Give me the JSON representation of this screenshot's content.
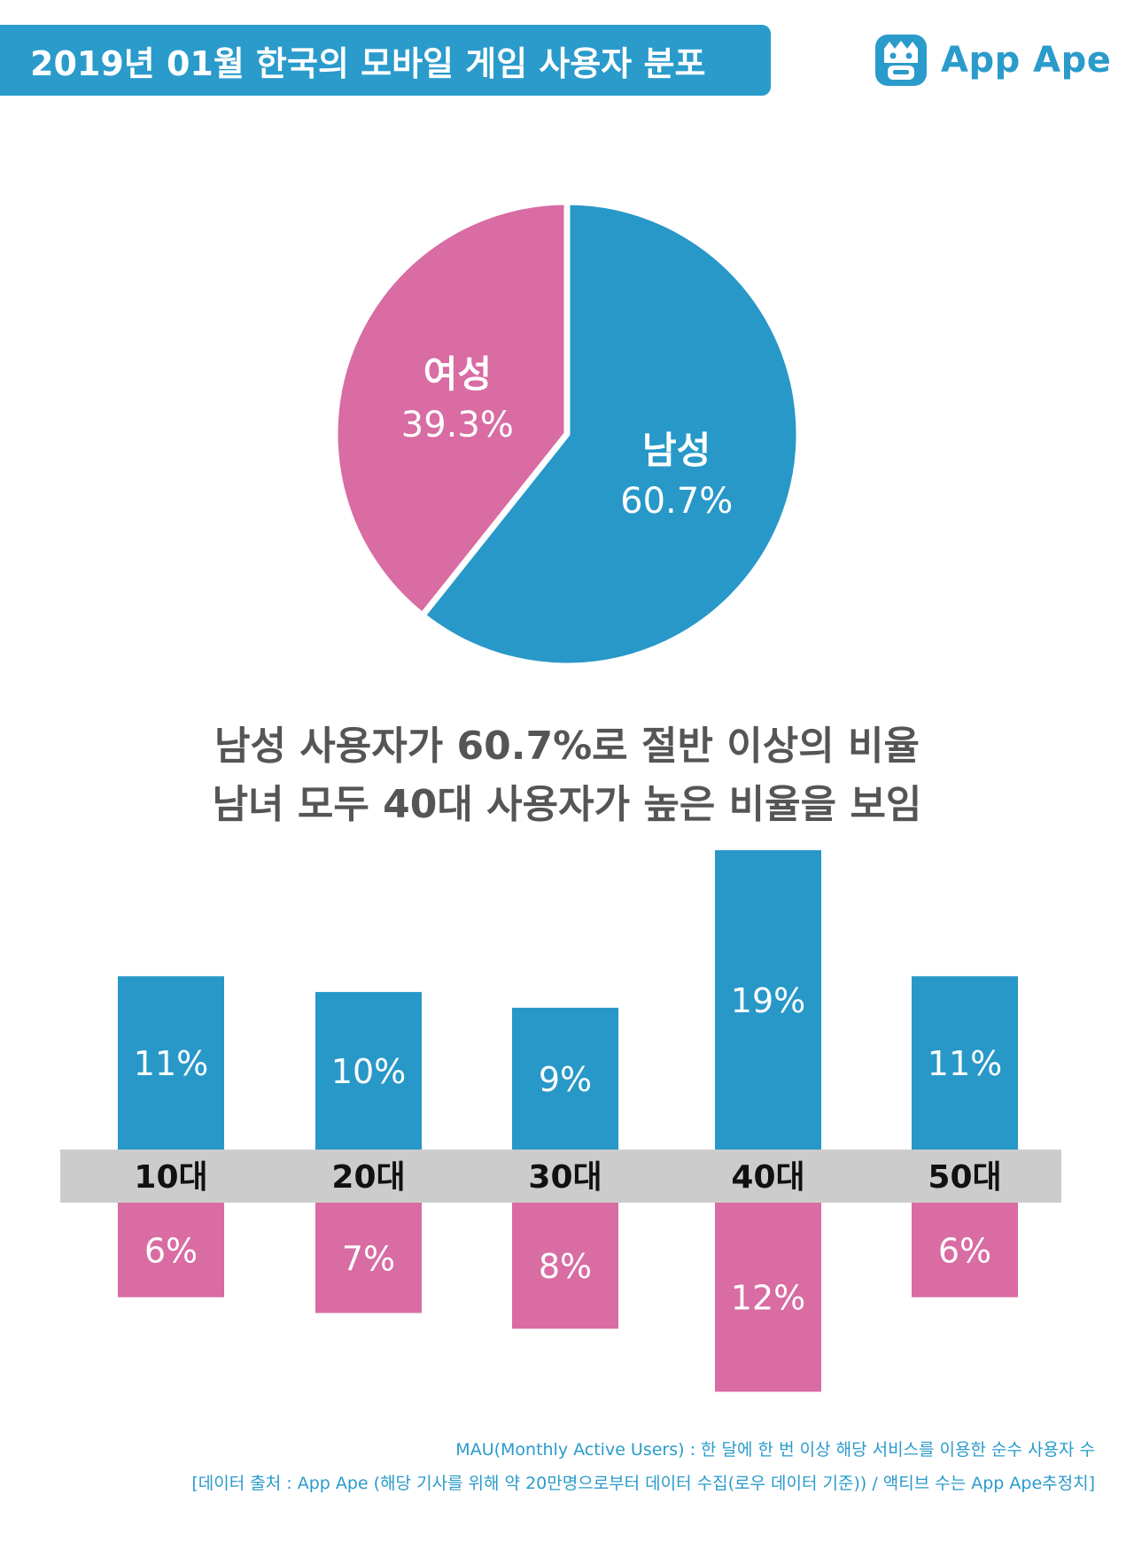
{
  "header": {
    "title": "2019년 01월 한국의 모바일 게임 사용자 분포",
    "logo_text": "App Ape",
    "logo_icon": "ape-face-icon"
  },
  "colors": {
    "male": "#2898c8",
    "female": "#d86ca3",
    "band": "#cccccc",
    "accent": "#2a9bcb"
  },
  "chart_data": [
    {
      "type": "pie",
      "slices": [
        {
          "label": "남성",
          "value": 60.7,
          "value_label": "60.7%",
          "color": "#2898c8"
        },
        {
          "label": "여성",
          "value": 39.3,
          "value_label": "39.3%",
          "color": "#d86ca3"
        }
      ]
    },
    {
      "type": "bar",
      "categories": [
        "10대",
        "20대",
        "30대",
        "40대",
        "50대"
      ],
      "series": [
        {
          "values": [
            11,
            10,
            9,
            19,
            11
          ],
          "labels": [
            "11%",
            "10%",
            "9%",
            "19%",
            "11%"
          ],
          "color": "#2898c8",
          "direction": "up"
        },
        {
          "values": [
            6,
            7,
            8,
            12,
            6
          ],
          "labels": [
            "6%",
            "7%",
            "8%",
            "12%",
            "6%"
          ],
          "color": "#d86ca3",
          "direction": "down"
        }
      ]
    }
  ],
  "headline": {
    "line1": "남성 사용자가 60.7%로 절반 이상의 비율",
    "line2": "남녀 모두 40대 사용자가 높은 비율을 보임"
  },
  "footnotes": {
    "line1": "MAU(Monthly Active Users) : 한 달에 한 번 이상 해당 서비스를 이용한 순수 사용자 수",
    "line2": "[데이터 출처 : App Ape (해당 기사를 위해 약 20만명으로부터 데이터 수집(로우 데이터 기준)) / 액티브 수는 App Ape추정치]"
  }
}
